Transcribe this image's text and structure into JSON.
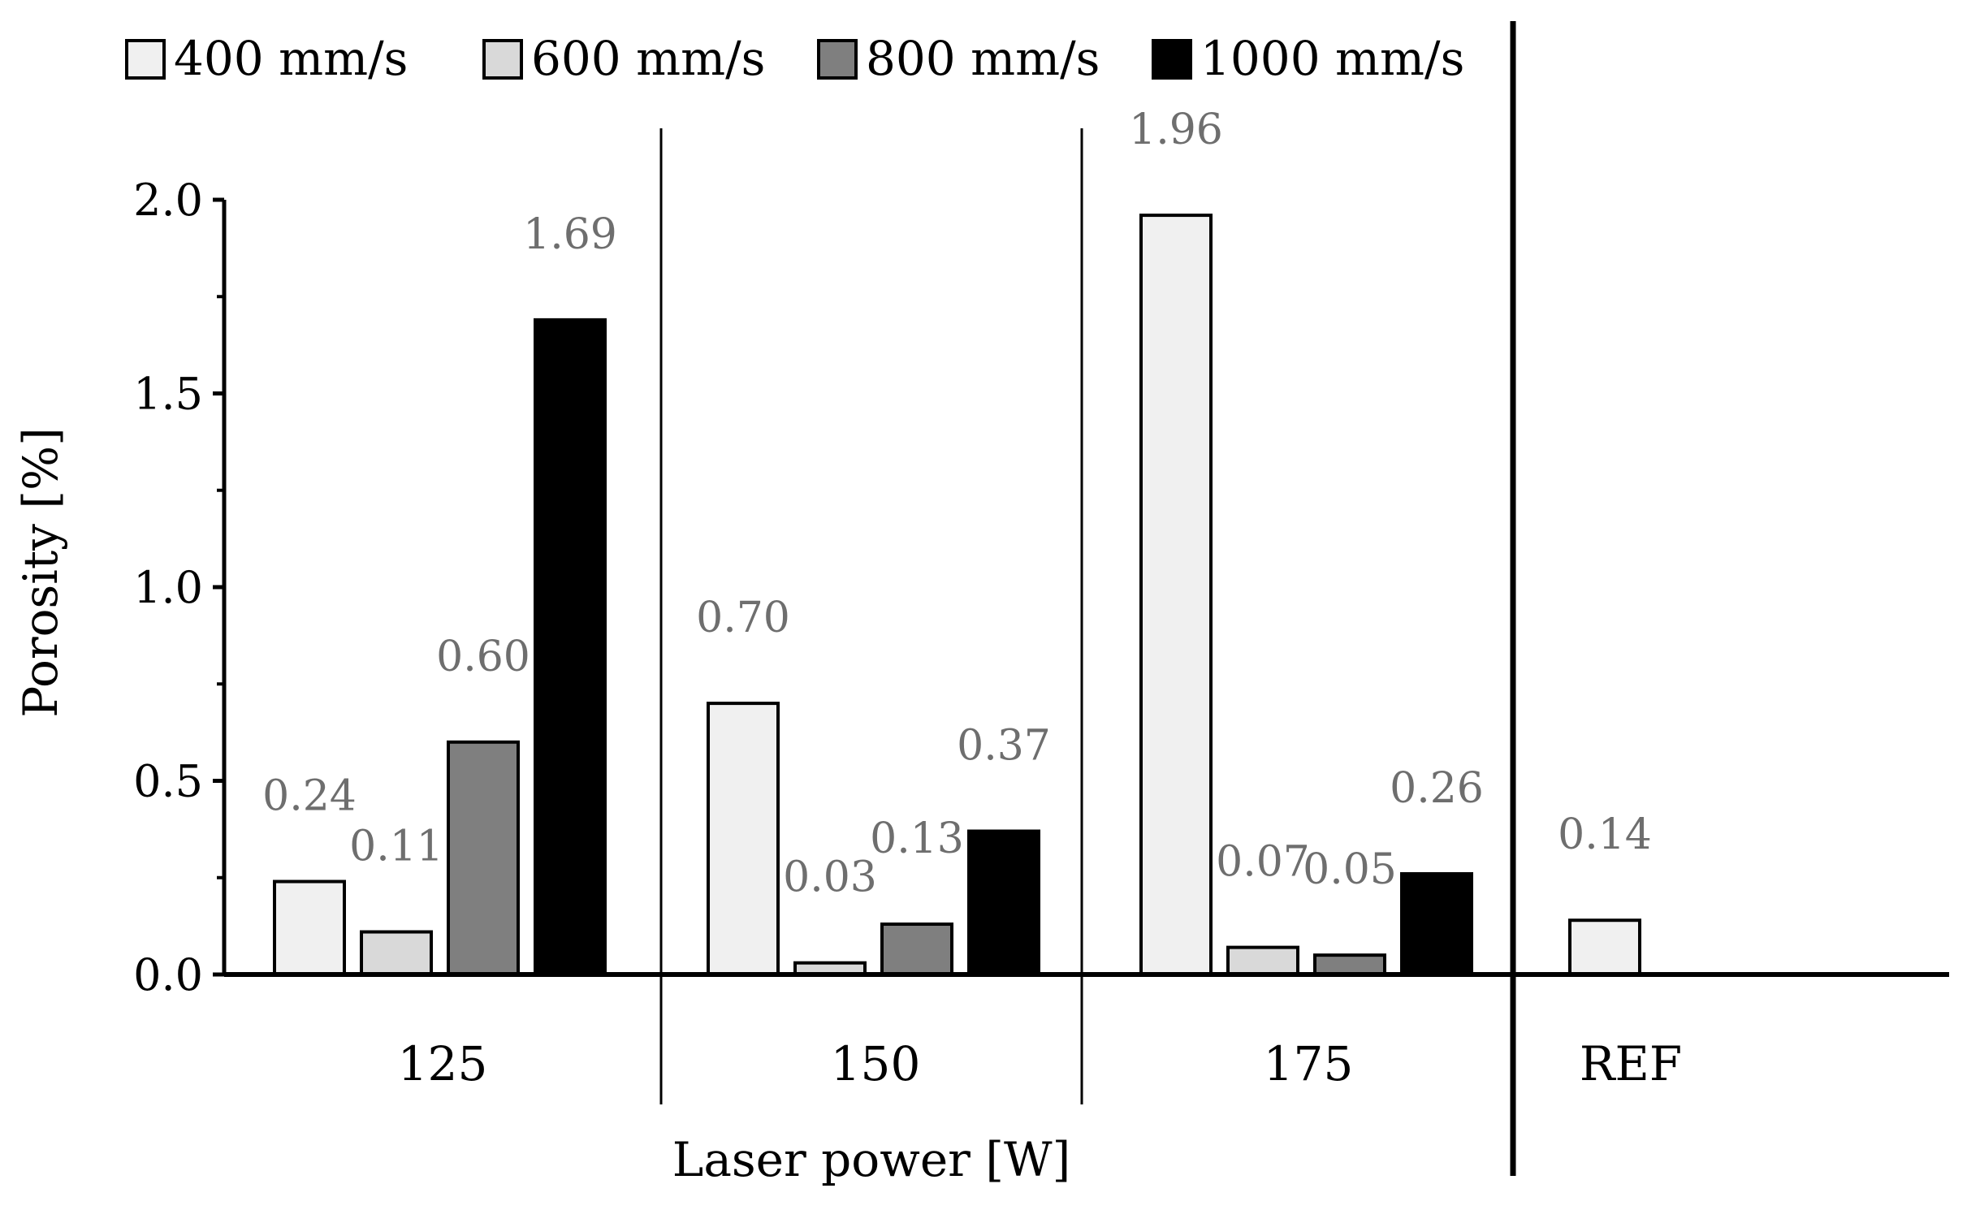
{
  "chart_data": {
    "type": "bar",
    "title": "",
    "xlabel": "Laser power [W]",
    "ylabel": "Porosity [%]",
    "ylim": [
      0,
      2.0
    ],
    "yticks": [
      "0.0",
      "0.5",
      "1.0",
      "1.5",
      "2.0"
    ],
    "ytick_values": [
      0,
      0.5,
      1.0,
      1.5,
      2.0
    ],
    "grid": false,
    "legend_position": "top",
    "categories": [
      "125",
      "150",
      "175",
      "REF"
    ],
    "series": [
      {
        "name": "400 mm/s",
        "color": "#f0f0f0",
        "values": [
          0.24,
          0.7,
          1.96,
          0.14
        ],
        "labels": [
          "0.24",
          "0.70",
          "1.96",
          "0.14"
        ]
      },
      {
        "name": "600 mm/s",
        "color": "#d9d9d9",
        "values": [
          0.11,
          0.03,
          0.07,
          null
        ],
        "labels": [
          "0.11",
          "0.03",
          "0.07",
          ""
        ]
      },
      {
        "name": "800 mm/s",
        "color": "#7f7f7f",
        "values": [
          0.6,
          0.13,
          0.05,
          null
        ],
        "labels": [
          "0.60",
          "0.13",
          "0.05",
          ""
        ]
      },
      {
        "name": "1000 mm/s",
        "color": "#000000",
        "values": [
          1.69,
          0.37,
          0.26,
          null
        ],
        "labels": [
          "1.69",
          "0.37",
          "0.26",
          ""
        ]
      }
    ],
    "label_color": "#6e6e6e"
  }
}
